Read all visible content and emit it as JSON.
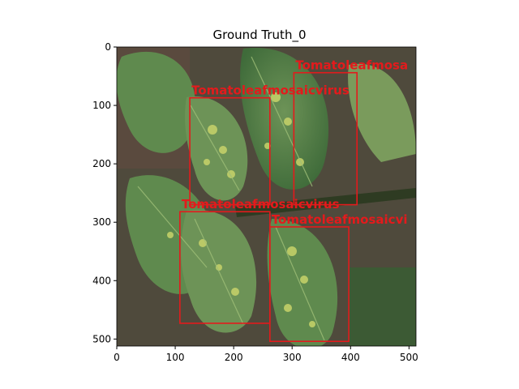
{
  "figure": {
    "title": "Ground Truth_0"
  },
  "image": {
    "description_icon": "leaf-photo",
    "width": 512,
    "height": 512
  },
  "axes": {
    "x_ticks": [
      0,
      100,
      200,
      300,
      400,
      500
    ],
    "y_ticks": [
      0,
      100,
      200,
      300,
      400,
      500
    ],
    "xlim": [
      0,
      512
    ],
    "ylim": [
      512,
      0
    ]
  },
  "colors": {
    "box": "#e41a1c",
    "leaf_dark": "#3f6b3a",
    "leaf_mid": "#5f8a4e",
    "leaf_light": "#8fae6a",
    "mosaic": "#c8d36a",
    "soil": "#5a4a3e"
  },
  "detections": [
    {
      "label": "Tomatoleafmosaicvirus",
      "x0": 125,
      "y0": 87,
      "x1": 262,
      "y1": 270
    },
    {
      "label": "Tomatoleafmosa",
      "x0": 303,
      "y0": 44,
      "x1": 411,
      "y1": 270
    },
    {
      "label": "Tomatoleafmosaicvirus",
      "x0": 108,
      "y0": 282,
      "x1": 262,
      "y1": 473
    },
    {
      "label": "Tomatoleafmosaicvi",
      "x0": 262,
      "y0": 308,
      "x1": 397,
      "y1": 504
    }
  ]
}
